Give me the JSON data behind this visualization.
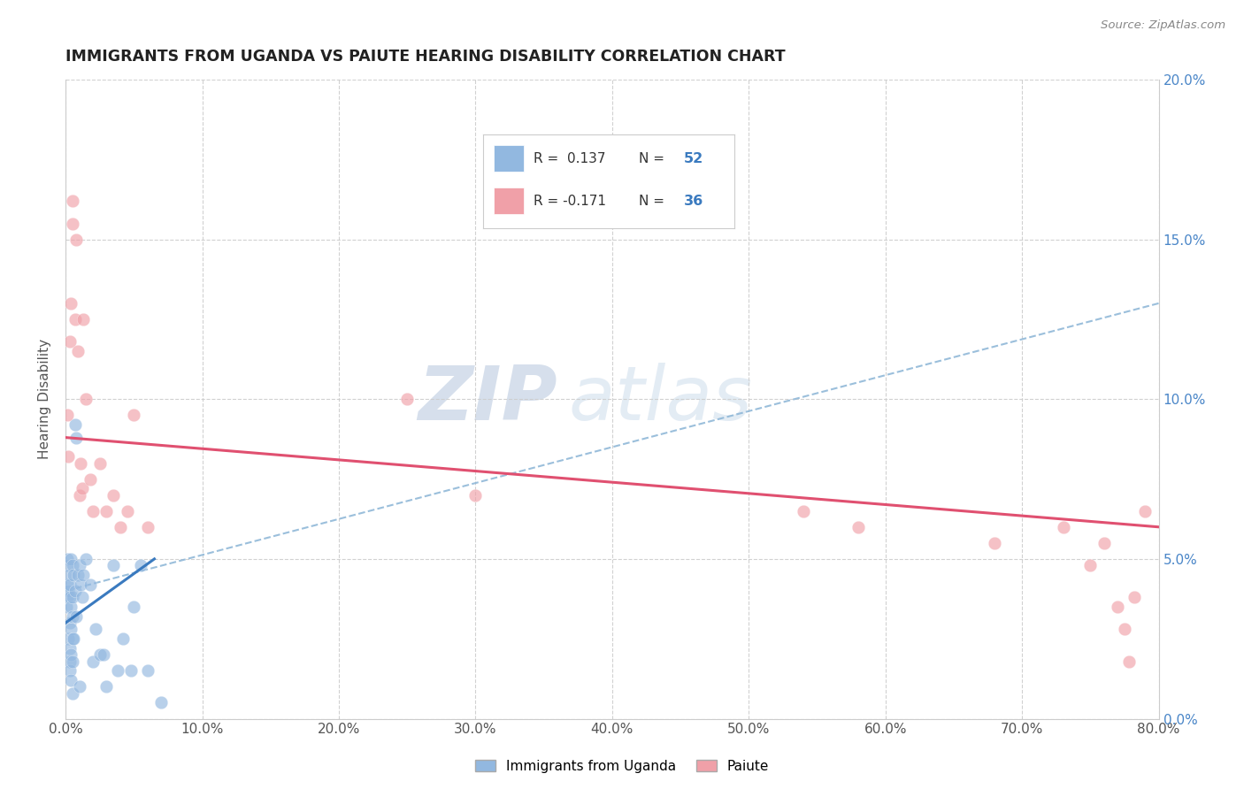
{
  "title": "IMMIGRANTS FROM UGANDA VS PAIUTE HEARING DISABILITY CORRELATION CHART",
  "source": "Source: ZipAtlas.com",
  "ylabel": "Hearing Disability",
  "color_blue": "#92b8e0",
  "color_pink": "#f0a0a8",
  "color_trend_blue": "#3a7abf",
  "color_trend_pink": "#e05070",
  "color_dashed": "#90b8d8",
  "watermark_zip": "ZIP",
  "watermark_atlas": "atlas",
  "xlim": [
    0.0,
    0.8
  ],
  "ylim": [
    0.0,
    0.2
  ],
  "xtick_vals": [
    0.0,
    0.1,
    0.2,
    0.3,
    0.4,
    0.5,
    0.6,
    0.7,
    0.8
  ],
  "ytick_vals": [
    0.0,
    0.05,
    0.1,
    0.15,
    0.2
  ],
  "legend_r1": "R =  0.137",
  "legend_n1": "N = 52",
  "legend_r2": "R = -0.171",
  "legend_n2": "N = 36",
  "uganda_x": [
    0.0005,
    0.001,
    0.001,
    0.0015,
    0.002,
    0.002,
    0.002,
    0.0025,
    0.003,
    0.003,
    0.003,
    0.003,
    0.003,
    0.0035,
    0.004,
    0.004,
    0.004,
    0.004,
    0.004,
    0.005,
    0.005,
    0.005,
    0.005,
    0.005,
    0.005,
    0.006,
    0.006,
    0.007,
    0.007,
    0.008,
    0.008,
    0.009,
    0.01,
    0.01,
    0.011,
    0.012,
    0.013,
    0.015,
    0.018,
    0.02,
    0.022,
    0.025,
    0.028,
    0.03,
    0.035,
    0.038,
    0.042,
    0.048,
    0.05,
    0.055,
    0.06,
    0.07
  ],
  "uganda_y": [
    0.035,
    0.05,
    0.042,
    0.038,
    0.048,
    0.04,
    0.025,
    0.045,
    0.038,
    0.03,
    0.022,
    0.018,
    0.015,
    0.042,
    0.05,
    0.035,
    0.028,
    0.02,
    0.012,
    0.048,
    0.038,
    0.032,
    0.025,
    0.018,
    0.008,
    0.045,
    0.025,
    0.092,
    0.04,
    0.088,
    0.032,
    0.045,
    0.048,
    0.01,
    0.042,
    0.038,
    0.045,
    0.05,
    0.042,
    0.018,
    0.028,
    0.02,
    0.02,
    0.01,
    0.048,
    0.015,
    0.025,
    0.015,
    0.035,
    0.048,
    0.015,
    0.005
  ],
  "paiute_x": [
    0.001,
    0.002,
    0.003,
    0.004,
    0.005,
    0.005,
    0.007,
    0.008,
    0.009,
    0.01,
    0.011,
    0.012,
    0.013,
    0.015,
    0.018,
    0.02,
    0.025,
    0.03,
    0.035,
    0.04,
    0.045,
    0.05,
    0.06,
    0.25,
    0.3,
    0.54,
    0.58,
    0.68,
    0.73,
    0.75,
    0.76,
    0.77,
    0.775,
    0.778,
    0.782,
    0.79
  ],
  "paiute_y": [
    0.095,
    0.082,
    0.118,
    0.13,
    0.162,
    0.155,
    0.125,
    0.15,
    0.115,
    0.07,
    0.08,
    0.072,
    0.125,
    0.1,
    0.075,
    0.065,
    0.08,
    0.065,
    0.07,
    0.06,
    0.065,
    0.095,
    0.06,
    0.1,
    0.07,
    0.065,
    0.06,
    0.055,
    0.06,
    0.048,
    0.055,
    0.035,
    0.028,
    0.018,
    0.038,
    0.065
  ],
  "uganda_trend_x": [
    0.0,
    0.065
  ],
  "uganda_trend_y": [
    0.03,
    0.05
  ],
  "paiute_trend_x": [
    0.0,
    0.8
  ],
  "paiute_trend_y": [
    0.088,
    0.06
  ],
  "dashed_trend_x": [
    0.0,
    0.8
  ],
  "dashed_trend_y": [
    0.04,
    0.13
  ]
}
